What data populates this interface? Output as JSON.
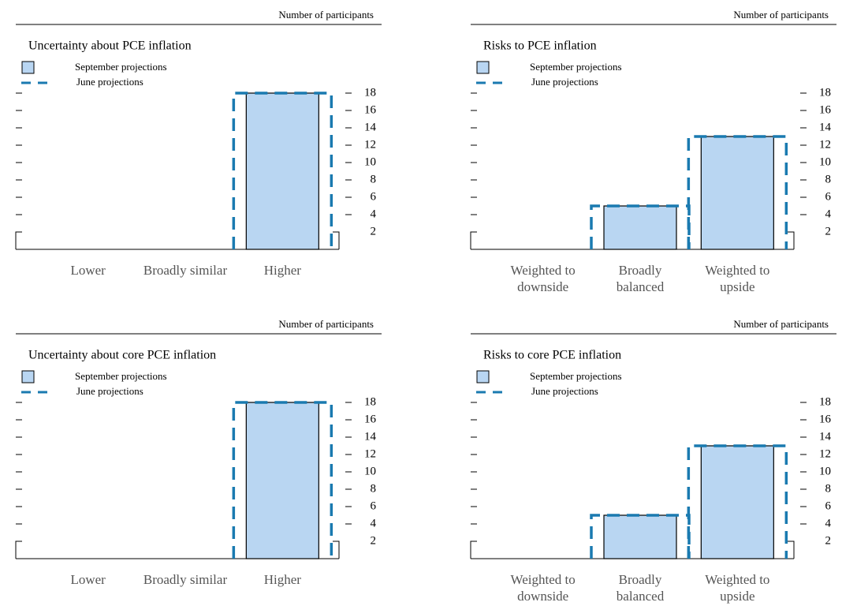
{
  "chart_data": [
    {
      "type": "bar",
      "unit_label": "Number of participants",
      "title": "Uncertainty about PCE inflation",
      "categories": [
        "Lower",
        "Broadly similar",
        "Higher"
      ],
      "series": [
        {
          "name": "September projections",
          "color": "#b9d6f2",
          "values": [
            0,
            0,
            18
          ]
        },
        {
          "name": "June projections",
          "color": "#1a7ab0",
          "style": "dashed",
          "values": [
            0,
            0,
            18
          ]
        }
      ],
      "ylim": [
        0,
        20
      ],
      "yticks": [
        2,
        4,
        6,
        8,
        10,
        12,
        14,
        16,
        18
      ]
    },
    {
      "type": "bar",
      "unit_label": "Number of participants",
      "title": "Risks to PCE inflation",
      "categories": [
        "Weighted to downside",
        "Broadly balanced",
        "Weighted to upside"
      ],
      "series": [
        {
          "name": "September projections",
          "color": "#b9d6f2",
          "values": [
            0,
            5,
            13
          ]
        },
        {
          "name": "June projections",
          "color": "#1a7ab0",
          "style": "dashed",
          "values": [
            0,
            5,
            13
          ]
        }
      ],
      "ylim": [
        0,
        20
      ],
      "yticks": [
        2,
        4,
        6,
        8,
        10,
        12,
        14,
        16,
        18
      ]
    },
    {
      "type": "bar",
      "unit_label": "Number of participants",
      "title": "Uncertainty about core PCE inflation",
      "categories": [
        "Lower",
        "Broadly similar",
        "Higher"
      ],
      "series": [
        {
          "name": "September projections",
          "color": "#b9d6f2",
          "values": [
            0,
            0,
            18
          ]
        },
        {
          "name": "June projections",
          "color": "#1a7ab0",
          "style": "dashed",
          "values": [
            0,
            0,
            18
          ]
        }
      ],
      "ylim": [
        0,
        20
      ],
      "yticks": [
        2,
        4,
        6,
        8,
        10,
        12,
        14,
        16,
        18
      ]
    },
    {
      "type": "bar",
      "unit_label": "Number of participants",
      "title": "Risks to core PCE inflation",
      "categories": [
        "Weighted to downside",
        "Broadly balanced",
        "Weighted to upside"
      ],
      "series": [
        {
          "name": "September projections",
          "color": "#b9d6f2",
          "values": [
            0,
            5,
            13
          ]
        },
        {
          "name": "June projections",
          "color": "#1a7ab0",
          "style": "dashed",
          "values": [
            0,
            5,
            13
          ]
        }
      ],
      "ylim": [
        0,
        20
      ],
      "yticks": [
        2,
        4,
        6,
        8,
        10,
        12,
        14,
        16,
        18
      ]
    }
  ]
}
